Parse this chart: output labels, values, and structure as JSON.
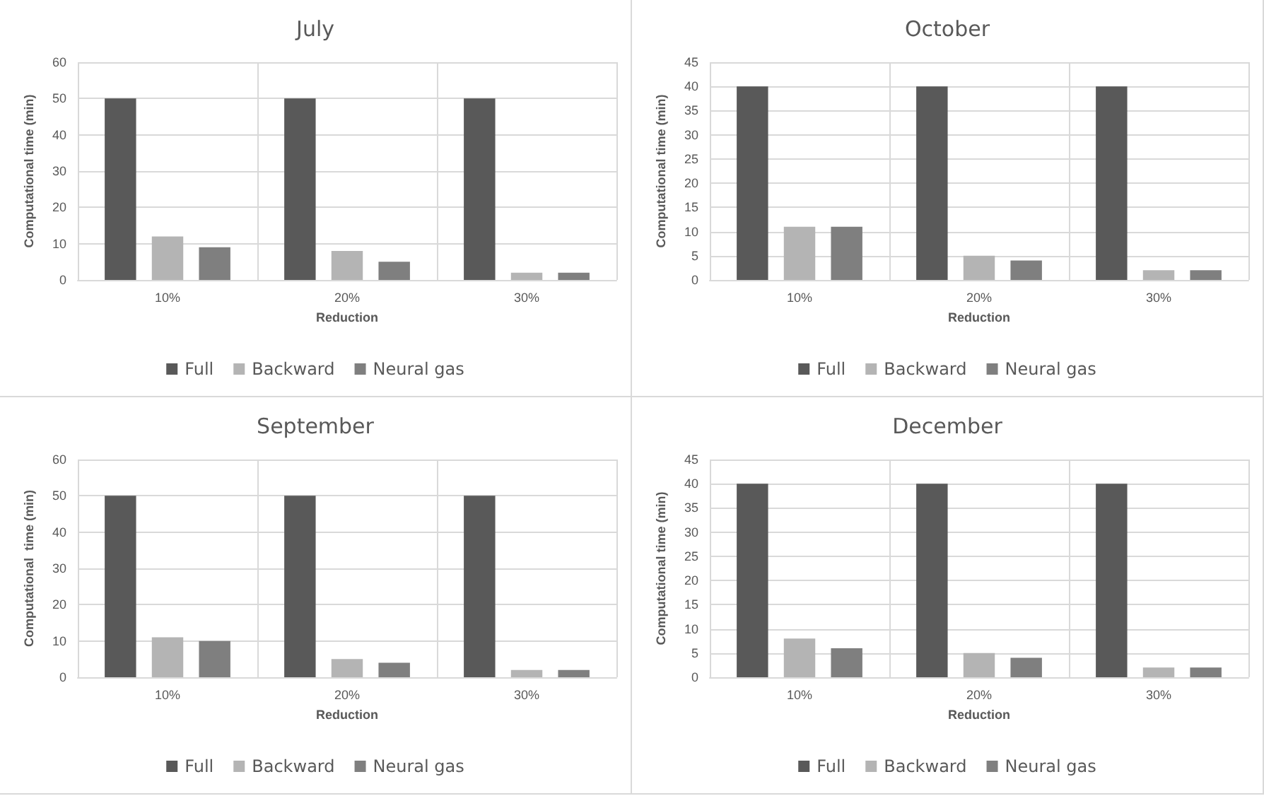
{
  "chart_data": [
    {
      "type": "bar",
      "title": "July",
      "xlabel": "Reduction",
      "ylabel": "Computational time (min)",
      "categories": [
        "10%",
        "20%",
        "30%"
      ],
      "series": [
        {
          "name": "Full",
          "color": "#595959",
          "values": [
            50,
            50,
            50
          ]
        },
        {
          "name": "Backward",
          "color": "#b4b4b4",
          "values": [
            12,
            8,
            2
          ]
        },
        {
          "name": "Neural gas",
          "color": "#7f7f7f",
          "values": [
            9,
            5,
            2
          ]
        }
      ],
      "ylim": [
        0,
        60
      ],
      "yticks": [
        0,
        10,
        20,
        30,
        40,
        50,
        60
      ],
      "grid": true,
      "legend": "bottom"
    },
    {
      "type": "bar",
      "title": "October",
      "xlabel": "Reduction",
      "ylabel": "Computational time (min)",
      "categories": [
        "10%",
        "20%",
        "30%"
      ],
      "series": [
        {
          "name": "Full",
          "color": "#595959",
          "values": [
            40,
            40,
            40
          ]
        },
        {
          "name": "Backward",
          "color": "#b4b4b4",
          "values": [
            11,
            5,
            2
          ]
        },
        {
          "name": "Neural gas",
          "color": "#7f7f7f",
          "values": [
            11,
            4,
            2
          ]
        }
      ],
      "ylim": [
        0,
        45
      ],
      "yticks": [
        0,
        5,
        10,
        15,
        20,
        25,
        30,
        35,
        40,
        45
      ],
      "grid": true,
      "legend": "bottom"
    },
    {
      "type": "bar",
      "title": "September",
      "xlabel": "Reduction",
      "ylabel": "Computational  time (min)",
      "categories": [
        "10%",
        "20%",
        "30%"
      ],
      "series": [
        {
          "name": "Full",
          "color": "#595959",
          "values": [
            50,
            50,
            50
          ]
        },
        {
          "name": "Backward",
          "color": "#b4b4b4",
          "values": [
            11,
            5,
            2
          ]
        },
        {
          "name": "Neural gas",
          "color": "#7f7f7f",
          "values": [
            10,
            4,
            2
          ]
        }
      ],
      "ylim": [
        0,
        60
      ],
      "yticks": [
        0,
        10,
        20,
        30,
        40,
        50,
        60
      ],
      "grid": true,
      "legend": "bottom"
    },
    {
      "type": "bar",
      "title": "December",
      "xlabel": "Reduction",
      "ylabel": "Computational time (min)",
      "categories": [
        "10%",
        "20%",
        "30%"
      ],
      "series": [
        {
          "name": "Full",
          "color": "#595959",
          "values": [
            40,
            40,
            40
          ]
        },
        {
          "name": "Backward",
          "color": "#b4b4b4",
          "values": [
            8,
            5,
            2
          ]
        },
        {
          "name": "Neural gas",
          "color": "#7f7f7f",
          "values": [
            6,
            4,
            2
          ]
        }
      ],
      "ylim": [
        0,
        45
      ],
      "yticks": [
        0,
        5,
        10,
        15,
        20,
        25,
        30,
        35,
        40,
        45
      ],
      "grid": true,
      "legend": "bottom"
    }
  ]
}
